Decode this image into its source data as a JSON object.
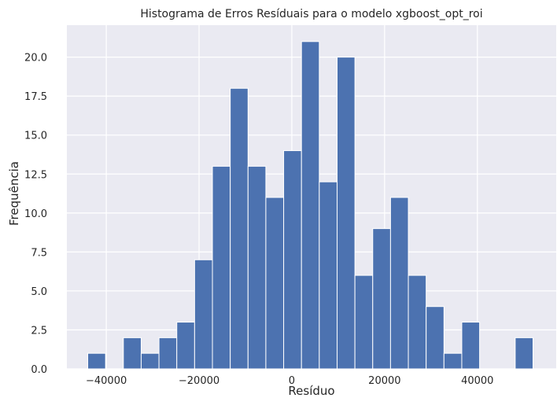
{
  "chart_data": {
    "type": "bar",
    "subtype": "histogram",
    "title": "Histograma de Erros Resíduais para o modelo xgboost_opt_roi",
    "xlabel": "Resíduo",
    "ylabel": "Frequência",
    "xlim": [
      -48500,
      57000
    ],
    "ylim": [
      0,
      22.05
    ],
    "xticks": [
      -40000,
      -20000,
      0,
      20000,
      40000
    ],
    "xtick_labels": [
      "−40000",
      "−20000",
      "0",
      "20000",
      "40000"
    ],
    "yticks": [
      0,
      2.5,
      5,
      7.5,
      10,
      12.5,
      15,
      17.5,
      20
    ],
    "ytick_labels": [
      "0.0",
      "2.5",
      "5.0",
      "7.5",
      "10.0",
      "12.5",
      "15.0",
      "17.5",
      "20.0"
    ],
    "bin_start": -44000,
    "bin_width": 3840,
    "values": [
      1,
      0,
      2,
      1,
      2,
      3,
      7,
      13,
      18,
      13,
      11,
      14,
      21,
      12,
      20,
      6,
      9,
      11,
      6,
      4,
      1,
      3,
      0,
      0,
      2
    ],
    "grid": true,
    "legend": "none",
    "colors": {
      "bar": "#4c72b0",
      "bar_edge": "#ffffff",
      "background": "#eaeaf2",
      "grid": "#ffffff",
      "text": "#262626"
    }
  }
}
